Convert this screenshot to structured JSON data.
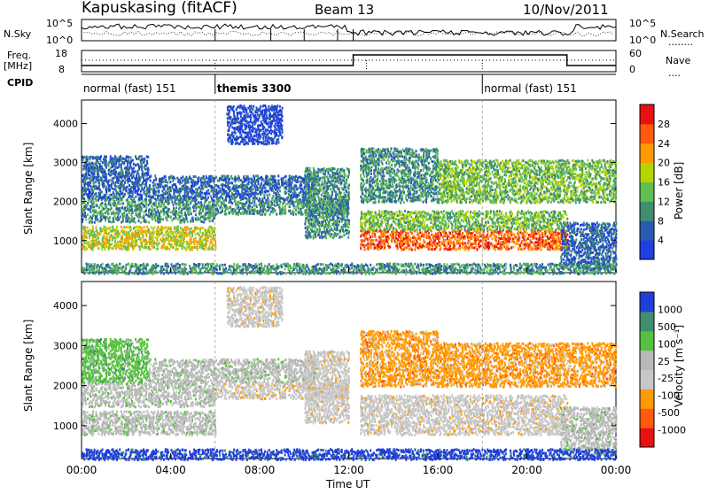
{
  "header": {
    "station": "Kapuskasing (fitACF)",
    "beam": "Beam 13",
    "date": "10/Nov/2011"
  },
  "status_labels": {
    "nsky": "N.Sky",
    "nsky_ticks": [
      "10^5",
      "10^0"
    ],
    "nsearch": "N.Search",
    "nsearch_line": "........",
    "freq_line1": "Freq.",
    "freq_line2": "[MHz]",
    "freq_ticks": [
      "18",
      "8"
    ],
    "nave": "Nave",
    "nave_line": "....",
    "nave_ticks": [
      "60",
      "0"
    ],
    "nsky_right_ticks": [
      "10^5",
      "10^0"
    ],
    "cpid": "CPID"
  },
  "cpid_segments": [
    {
      "start_hour": 0,
      "label": "normal (fast) 151"
    },
    {
      "start_hour": 6,
      "label": "themis 3300"
    },
    {
      "start_hour": 18,
      "label": "normal (fast) 151"
    }
  ],
  "x_axis": {
    "title": "Time UT",
    "ticks": [
      "00:00",
      "04:00",
      "08:00",
      "12:00",
      "16:00",
      "20:00",
      "00:00"
    ],
    "range_hours": [
      0,
      24
    ]
  },
  "panels": [
    {
      "ylabel": "Slant Range [km]",
      "yticks": [
        "1000",
        "2000",
        "3000",
        "4000"
      ],
      "yrange_km": [
        180,
        4600
      ],
      "colorbar_label": "Power [dB]",
      "colorbar_ticks": [
        "4",
        "8",
        "12",
        "16",
        "20",
        "24",
        "28"
      ],
      "colors": [
        "#1f3fe0",
        "#2a5bb0",
        "#3f8f6e",
        "#60bf50",
        "#b8d400",
        "#ff9a00",
        "#ff5a10",
        "#e81010"
      ]
    },
    {
      "ylabel": "Slant Range [km]",
      "yticks": [
        "1000",
        "2000",
        "3000",
        "4000"
      ],
      "yrange_km": [
        180,
        4600
      ],
      "colorbar_label": "Velocity [m s⁻¹]",
      "colorbar_ticks": [
        "1000",
        "500",
        "100",
        "25",
        "-25",
        "-100",
        "-500",
        "-1000"
      ],
      "colors": [
        "#1f3fd8",
        "#3f8f6e",
        "#58c040",
        "#b8b8b8",
        "#c8c8c8",
        "#ff9a00",
        "#ff5a10",
        "#e81010"
      ]
    }
  ],
  "chart_data": {
    "type": "heatmap",
    "title": "Kapuskasing (fitACF) Beam 13 10/Nov/2011",
    "xlabel": "Time UT",
    "ylabel": "Slant Range [km]",
    "xlim_hours": [
      0,
      24
    ],
    "ylim_km": [
      180,
      4600
    ],
    "power_colorbar": {
      "label": "Power [dB]",
      "ticks": [
        4,
        8,
        12,
        16,
        20,
        24,
        28
      ]
    },
    "velocity_colorbar": {
      "label": "Velocity [m s-1]",
      "ticks": [
        1000,
        500,
        100,
        25,
        -25,
        -100,
        -500,
        -1000
      ]
    },
    "scatter_regions": [
      {
        "t0": 0.0,
        "t1": 6.0,
        "r0": 800,
        "r1": 1400,
        "power_level": 4,
        "vel_class": 3
      },
      {
        "t0": 0.0,
        "t1": 6.0,
        "r0": 1500,
        "r1": 2100,
        "power_level": 2,
        "vel_class": 3
      },
      {
        "t0": 0.0,
        "t1": 3.0,
        "r0": 2100,
        "r1": 3200,
        "power_level": 1,
        "vel_class": 2
      },
      {
        "t0": 3.0,
        "t1": 10.5,
        "r0": 2100,
        "r1": 2700,
        "power_level": 1,
        "vel_class": 3
      },
      {
        "t0": 6.0,
        "t1": 12.0,
        "r0": 1700,
        "r1": 2100,
        "power_level": 2,
        "vel_class": 4
      },
      {
        "t0": 10.0,
        "t1": 12.0,
        "r0": 1100,
        "r1": 2900,
        "power_level": 2,
        "vel_class": 4
      },
      {
        "t0": 6.5,
        "t1": 9.0,
        "r0": 3500,
        "r1": 4500,
        "power_level": 0,
        "vel_class": 4
      },
      {
        "t0": 12.5,
        "t1": 21.8,
        "r0": 800,
        "r1": 1300,
        "power_level": 6,
        "vel_class": 4
      },
      {
        "t0": 12.5,
        "t1": 21.8,
        "r0": 1300,
        "r1": 1800,
        "power_level": 3,
        "vel_class": 4
      },
      {
        "t0": 12.5,
        "t1": 16.0,
        "r0": 2000,
        "r1": 3400,
        "power_level": 2,
        "vel_class": 5
      },
      {
        "t0": 16.0,
        "t1": 24.0,
        "r0": 2000,
        "r1": 3100,
        "power_level": 3,
        "vel_class": 5
      },
      {
        "t0": 21.5,
        "t1": 24.0,
        "r0": 300,
        "r1": 1500,
        "power_level": 1,
        "vel_class": 3
      },
      {
        "t0": 0.0,
        "t1": 24.0,
        "r0": 180,
        "r1": 450,
        "power_level": 2,
        "vel_class": 0
      }
    ]
  }
}
